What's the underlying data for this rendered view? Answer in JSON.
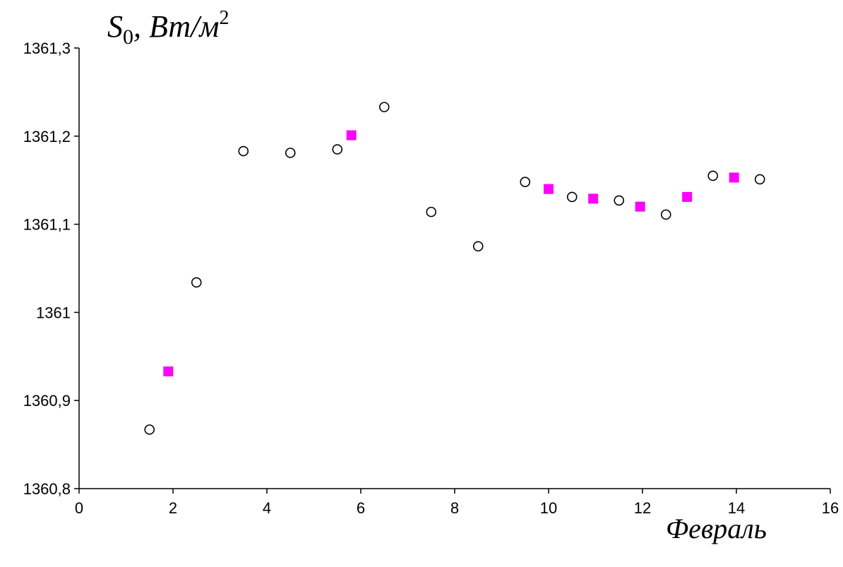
{
  "chart_data": {
    "type": "scatter",
    "title": "",
    "xlabel": "Февраль",
    "ylabel": {
      "symbol": "S",
      "subscript": "0",
      "unit": ", Вт/м",
      "superscript": "2"
    },
    "xlim": [
      0,
      16
    ],
    "ylim": [
      1360.8,
      1361.3
    ],
    "x_ticks": [
      0,
      2,
      4,
      6,
      8,
      10,
      12,
      14,
      16
    ],
    "x_tick_labels": [
      "0",
      "2",
      "4",
      "6",
      "8",
      "10",
      "12",
      "14",
      "16"
    ],
    "y_ticks": [
      1360.8,
      1360.9,
      1361.0,
      1361.1,
      1361.2,
      1361.3
    ],
    "y_tick_labels": [
      "1360,8",
      "1360,9",
      "1361",
      "1361,1",
      "1361,2",
      "1361,3"
    ],
    "grid": false,
    "series": [
      {
        "marker": "open-circle",
        "color": "#000000",
        "x": [
          1.5,
          2.5,
          3.5,
          4.5,
          5.5,
          6.5,
          7.5,
          8.5,
          9.5,
          10.5,
          11.5,
          12.5,
          13.5,
          14.5
        ],
        "y": [
          1360.867,
          1361.034,
          1361.183,
          1361.181,
          1361.185,
          1361.233,
          1361.114,
          1361.075,
          1361.148,
          1361.131,
          1361.127,
          1361.111,
          1361.155,
          1361.151
        ]
      },
      {
        "marker": "filled-square",
        "color": "#FF00FF",
        "x": [
          1.9,
          5.8,
          10.0,
          10.95,
          11.95,
          12.95,
          13.95
        ],
        "y": [
          1360.933,
          1361.201,
          1361.14,
          1361.129,
          1361.12,
          1361.131,
          1361.153
        ]
      }
    ]
  }
}
